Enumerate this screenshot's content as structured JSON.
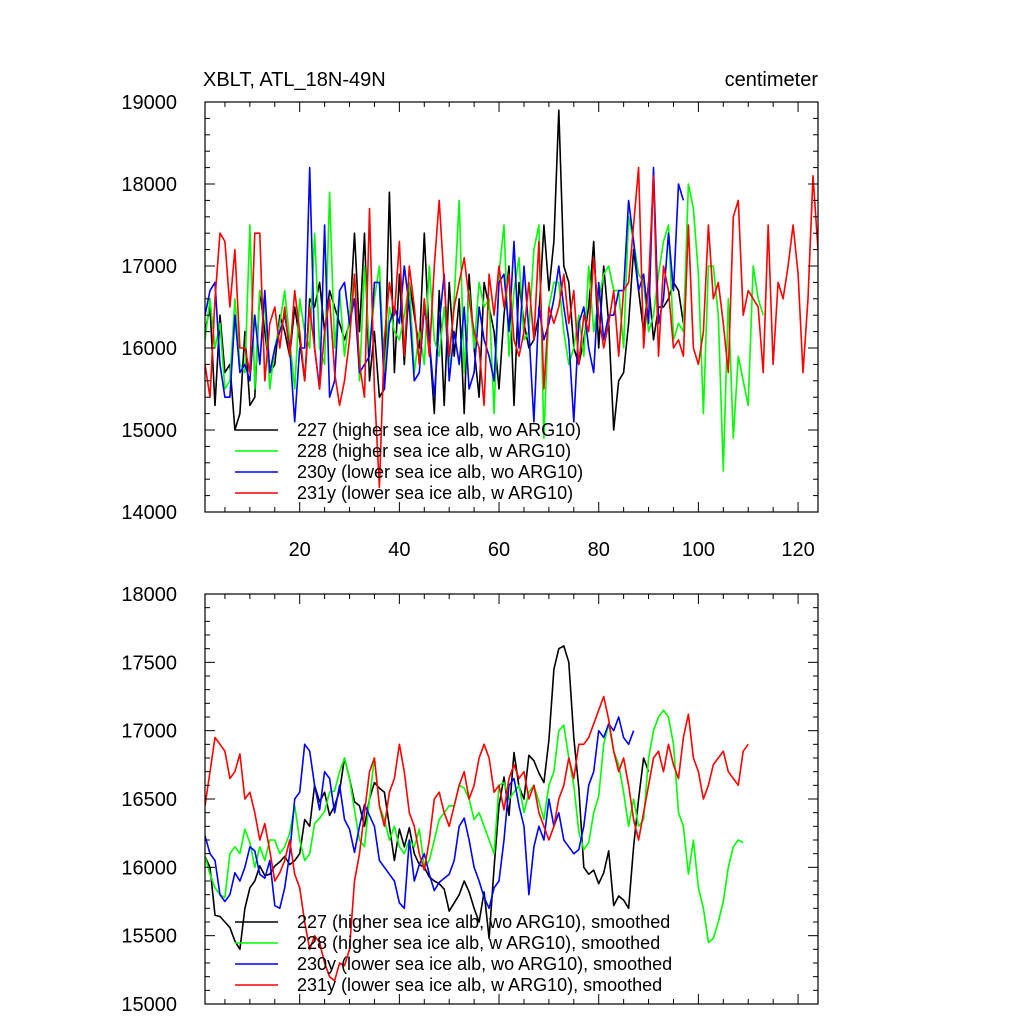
{
  "chart_data": [
    {
      "type": "line",
      "title_left": "XBLT, ATL_18N-49N",
      "title_right": "centimeter",
      "xlim": [
        1,
        124
      ],
      "ylim": [
        14000,
        19000
      ],
      "xticks": [
        20,
        40,
        60,
        80,
        100,
        120
      ],
      "xtick_labels": [
        "20",
        "40",
        "60",
        "80",
        "100",
        "120"
      ],
      "yticks": [
        14000,
        15000,
        16000,
        17000,
        18000,
        19000
      ],
      "ytick_labels": [
        "14000",
        "15000",
        "16000",
        "17000",
        "18000",
        "19000"
      ],
      "legend_position": "bottom-left",
      "series": [
        {
          "name": "227 (higher sea ice alb, wo ARG10)",
          "color": "#000000",
          "x_start": 1,
          "values": [
            16200,
            16500,
            15300,
            16400,
            15700,
            15800,
            15000,
            15200,
            16200,
            15300,
            15400,
            16700,
            16200,
            15700,
            15800,
            16400,
            16200,
            15900,
            16500,
            16100,
            15600,
            16600,
            16500,
            16800,
            16200,
            16700,
            16500,
            16300,
            16100,
            16300,
            17400,
            16200,
            17400,
            15600,
            16200,
            15400,
            15500,
            17900,
            15700,
            16900,
            15800,
            16800,
            16400,
            16000,
            17400,
            16100,
            15200,
            16700,
            15300,
            16800,
            15900,
            16600,
            15200,
            16900,
            16000,
            15400,
            16800,
            16500,
            16200,
            15500,
            16400,
            17000,
            15300,
            16800,
            16300,
            16000,
            16100,
            16400,
            17500,
            16700,
            17300,
            18900,
            17000,
            16800,
            16000,
            15800,
            16100,
            16500,
            17300,
            16000,
            17000,
            16300,
            15000,
            15600,
            15700,
            16300,
            17200,
            16700,
            16200,
            16800,
            16100,
            16500,
            16500,
            16600,
            16800,
            16700,
            16300
          ]
        },
        {
          "name": "228 (higher sea ice alb, w ARG10)",
          "color": "#00ff00",
          "x_start": 1,
          "values": [
            16100,
            16600,
            16000,
            16300,
            15500,
            15600,
            16600,
            15800,
            15700,
            17500,
            15500,
            16700,
            16500,
            15500,
            16000,
            16300,
            16700,
            16100,
            15500,
            16600,
            16200,
            16000,
            17400,
            16000,
            15800,
            17900,
            16000,
            16700,
            15900,
            16400,
            16900,
            15600,
            17000,
            16000,
            16600,
            17000,
            15700,
            16500,
            16200,
            16100,
            16400,
            16800,
            15700,
            16200,
            15800,
            17000,
            16100,
            15900,
            16500,
            15800,
            16600,
            17800,
            15700,
            16700,
            16000,
            16800,
            16500,
            16600,
            15200,
            16900,
            17500,
            15900,
            16700,
            17100,
            16100,
            16200,
            17200,
            17500,
            14900,
            16500,
            16800,
            16800,
            16200,
            15800,
            16000,
            16400,
            15900,
            17000,
            16200,
            16600,
            16900,
            17000,
            16700,
            16700,
            16000,
            17600,
            17300,
            16900,
            16800,
            16200,
            16400,
            16900,
            17300,
            17500,
            16100,
            16300,
            16200,
            18000,
            17700,
            16900,
            15200,
            17000,
            17000,
            16400,
            14500,
            16600,
            14900,
            15900,
            15600,
            15300,
            17000,
            16600,
            16400
          ]
        },
        {
          "name": "230y (lower sea ice alb, wo ARG10)",
          "color": "#0000ff",
          "x_start": 1,
          "values": [
            16400,
            16700,
            16800,
            15800,
            15400,
            15400,
            16400,
            15700,
            15800,
            15600,
            16400,
            15800,
            16700,
            15700,
            16000,
            16200,
            16400,
            16000,
            15100,
            16000,
            16000,
            18200,
            16000,
            15500,
            17500,
            15400,
            15600,
            16700,
            16800,
            16300,
            16600,
            15700,
            15800,
            15900,
            16800,
            16800,
            15500,
            16300,
            16500,
            16300,
            17000,
            16500,
            15600,
            15700,
            16500,
            16100,
            15400,
            16300,
            16900,
            15600,
            16200,
            15800,
            16500,
            15500,
            15700,
            16500,
            16100,
            15900,
            15600,
            16800,
            16900,
            16200,
            17300,
            16000,
            17000,
            16200,
            15100,
            16500,
            16100,
            16300,
            16600,
            17000,
            16500,
            16100,
            15100,
            16300,
            16500,
            16000,
            15700,
            16800,
            16100,
            16400,
            16400,
            16700,
            16700,
            17800,
            17300,
            16700,
            16900,
            16300,
            18200,
            16300,
            16600,
            17400,
            16700,
            18000,
            17800
          ]
        },
        {
          "name": "231y (lower sea ice alb, w ARG10)",
          "color": "#ff0000",
          "x_start": 1,
          "values": [
            15800,
            15400,
            16600,
            17400,
            17300,
            16500,
            17200,
            16000,
            16000,
            15700,
            17400,
            17400,
            15600,
            16300,
            16500,
            16000,
            16500,
            15900,
            16700,
            16200,
            15600,
            16500,
            16000,
            15500,
            16200,
            16600,
            15700,
            15300,
            15600,
            16100,
            16900,
            15800,
            15400,
            17700,
            15500,
            14300,
            16100,
            16800,
            16400,
            17300,
            15900,
            17000,
            16500,
            15800,
            16600,
            15900,
            17000,
            17800,
            16800,
            15900,
            16500,
            16800,
            17100,
            16600,
            16200,
            16000,
            15300,
            16900,
            16400,
            17000,
            16500,
            16900,
            16100,
            15900,
            16200,
            16800,
            16100,
            17300,
            15500,
            16500,
            16300,
            16500,
            16900,
            16300,
            16700,
            15800,
            16400,
            16200,
            17100,
            16400,
            16000,
            16300,
            16700,
            15900,
            16700,
            16800,
            17500,
            18200,
            16000,
            16800,
            18100,
            15900,
            17000,
            16700,
            16000,
            16100,
            15900,
            17500,
            16000,
            15800,
            16200,
            17500,
            16600,
            16800,
            16300,
            15700,
            17600,
            17800,
            16400,
            16700,
            16600,
            16500,
            15700,
            17500,
            15800,
            16800,
            16600,
            17000,
            17500,
            16900,
            15700,
            16600,
            18100,
            17200
          ]
        }
      ]
    },
    {
      "type": "line",
      "title_left": "",
      "title_right": "",
      "xlim": [
        1,
        124
      ],
      "ylim": [
        15000,
        18000
      ],
      "xticks": [
        20,
        40,
        60,
        80,
        100,
        120
      ],
      "xtick_labels": [],
      "yticks": [
        15000,
        15500,
        16000,
        16500,
        17000,
        17500,
        18000
      ],
      "ytick_labels": [
        "15000",
        "15500",
        "16000",
        "16500",
        "17000",
        "17500",
        "18000"
      ],
      "legend_position": "bottom-left",
      "series": [
        {
          "name": "227 (higher sea ice alb, wo ARG10), smoothed",
          "color": "#000000",
          "x_start": 1,
          "values": [
            16080,
            16000,
            15650,
            15640,
            15600,
            15560,
            15460,
            15400,
            15700,
            15850,
            15900,
            16010,
            15940,
            15950,
            16010,
            16040,
            16080,
            16020,
            16050,
            16100,
            16350,
            16300,
            16600,
            16480,
            16550,
            16380,
            16450,
            16560,
            16800,
            16650,
            16480,
            16450,
            16300,
            16500,
            16620,
            16580,
            16550,
            16300,
            16050,
            16280,
            16150,
            16290,
            16100,
            16020,
            16000,
            15930,
            15900,
            15880,
            15840,
            15680,
            15740,
            15800,
            15900,
            15820,
            15700,
            15600,
            15820,
            15480,
            16000,
            16450,
            16660,
            16380,
            16840,
            16590,
            16500,
            16820,
            16780,
            16690,
            16620,
            16930,
            17450,
            17600,
            17620,
            17500,
            16950,
            16580,
            16000,
            15950,
            15980,
            15880,
            15960,
            16120,
            15720,
            15790,
            15760,
            15700,
            16150,
            16500,
            16800,
            16700
          ]
        },
        {
          "name": "228 (higher sea ice alb, w ARG10), smoothed",
          "color": "#00ff00",
          "x_start": 1,
          "values": [
            16080,
            15950,
            15850,
            15800,
            15780,
            16100,
            16150,
            16100,
            16280,
            16180,
            16000,
            16150,
            16050,
            16200,
            16200,
            16100,
            16150,
            16250,
            16450,
            16200,
            16050,
            16100,
            16320,
            16360,
            16410,
            16550,
            16560,
            16700,
            16800,
            16650,
            16420,
            16200,
            16150,
            16500,
            16800,
            16450,
            16350,
            16200,
            16300,
            16150,
            16100,
            16200,
            16150,
            16280,
            16000,
            16050,
            16200,
            16350,
            16400,
            16450,
            16450,
            16600,
            16580,
            16500,
            16350,
            16400,
            16300,
            16200,
            16100,
            16600,
            16620,
            16500,
            16550,
            16600,
            16400,
            16550,
            16600,
            16480,
            16350,
            16600,
            16700,
            17000,
            17040,
            16800,
            16600,
            16260,
            16130,
            16180,
            16400,
            16520,
            16900,
            17050,
            16850,
            16750,
            16550,
            16300,
            16500,
            16300,
            16350,
            16800,
            17000,
            17100,
            17150,
            17100,
            16900,
            16400,
            16300,
            15950,
            16200,
            15850,
            15700,
            15450,
            15480,
            15600,
            15750,
            16000,
            16150,
            16200,
            16180
          ]
        },
        {
          "name": "230y (lower sea ice alb, wo ARG10), smoothed",
          "color": "#0000ff",
          "x_start": 1,
          "values": [
            16230,
            16100,
            16050,
            15800,
            15750,
            15800,
            15960,
            15900,
            16000,
            16150,
            16120,
            15950,
            15920,
            16050,
            15720,
            15700,
            15850,
            16100,
            16500,
            16550,
            16900,
            16850,
            16600,
            16420,
            16700,
            16650,
            16400,
            16600,
            16350,
            16280,
            16110,
            16300,
            16460,
            16380,
            16300,
            16050,
            16000,
            15950,
            15900,
            15740,
            15700,
            16200,
            15900,
            16020,
            16100,
            15950,
            15830,
            15890,
            15920,
            15950,
            16050,
            16300,
            16360,
            16200,
            16000,
            15900,
            15780,
            15700,
            15850,
            15900,
            16200,
            16600,
            16650,
            16450,
            16300,
            15800,
            16150,
            16300,
            16200,
            16500,
            16300,
            16400,
            16200,
            16150,
            16100,
            16130,
            16300,
            16600,
            16700,
            17000,
            16950,
            17050,
            17000,
            17100,
            16950,
            16900,
            17000
          ]
        },
        {
          "name": "231y (lower sea ice alb, w ARG10), smoothed",
          "color": "#ff0000",
          "x_start": 1,
          "values": [
            16450,
            16700,
            16950,
            16900,
            16850,
            16650,
            16700,
            16830,
            16500,
            16550,
            16400,
            16200,
            16320,
            16120,
            15900,
            15960,
            16050,
            16200,
            15950,
            15850,
            15600,
            15400,
            15500,
            15450,
            15300,
            15200,
            15170,
            15300,
            15280,
            15400,
            15900,
            16100,
            16400,
            16700,
            16800,
            16450,
            16300,
            16550,
            16650,
            16900,
            16700,
            16400,
            16300,
            16100,
            15980,
            16200,
            16500,
            16550,
            16400,
            16300,
            16450,
            16600,
            16700,
            16500,
            16600,
            16800,
            16900,
            16800,
            16550,
            16600,
            16420,
            16650,
            16750,
            16650,
            16700,
            16500,
            16600,
            16400,
            16300,
            16200,
            16300,
            16500,
            16600,
            16800,
            16650,
            16900,
            16900,
            16950,
            17050,
            17150,
            17250,
            17080,
            16850,
            16700,
            16800,
            16600,
            16350,
            16200,
            16400,
            16600,
            16800,
            16850,
            16700,
            16900,
            16750,
            16650,
            16950,
            17120,
            16800,
            16700,
            16500,
            16600,
            16750,
            16800,
            16850,
            16700,
            16650,
            16600,
            16850,
            16900
          ]
        }
      ]
    }
  ]
}
